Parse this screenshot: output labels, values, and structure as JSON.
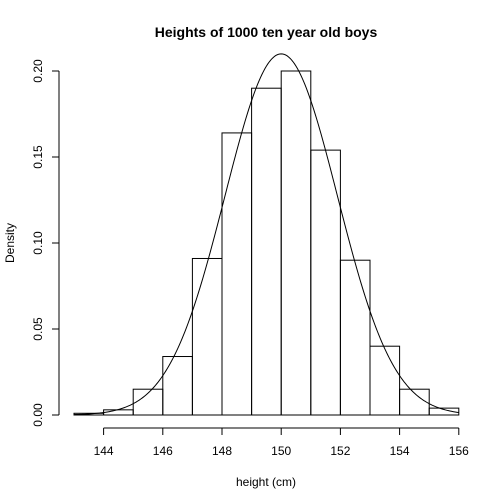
{
  "chart_data": {
    "type": "bar",
    "title": "Heights of 1000 ten year old boys",
    "xlabel": "height (cm)",
    "ylabel": "Density",
    "xlim": [
      143,
      156
    ],
    "ylim": [
      0,
      0.2
    ],
    "x_ticks": [
      144,
      146,
      148,
      150,
      152,
      154,
      156
    ],
    "y_ticks": [
      0.0,
      0.05,
      0.1,
      0.15,
      0.2
    ],
    "x_tick_labels": [
      "144",
      "146",
      "148",
      "150",
      "152",
      "154",
      "156"
    ],
    "y_tick_labels": [
      "0.00",
      "0.05",
      "0.10",
      "0.15",
      "0.20"
    ],
    "bins": [
      {
        "from": 143,
        "to": 144,
        "density": 0.001
      },
      {
        "from": 144,
        "to": 145,
        "density": 0.003
      },
      {
        "from": 145,
        "to": 146,
        "density": 0.015
      },
      {
        "from": 146,
        "to": 147,
        "density": 0.034
      },
      {
        "from": 147,
        "to": 148,
        "density": 0.091
      },
      {
        "from": 148,
        "to": 149,
        "density": 0.164
      },
      {
        "from": 149,
        "to": 150,
        "density": 0.19
      },
      {
        "from": 150,
        "to": 151,
        "density": 0.2
      },
      {
        "from": 151,
        "to": 152,
        "density": 0.154
      },
      {
        "from": 152,
        "to": 153,
        "density": 0.09
      },
      {
        "from": 153,
        "to": 154,
        "density": 0.04
      },
      {
        "from": 154,
        "to": 155,
        "density": 0.015
      },
      {
        "from": 155,
        "to": 156,
        "density": 0.004
      }
    ],
    "density_curve": {
      "mean": 150,
      "sd": 1.9
    },
    "grid": false,
    "legend": "none"
  }
}
